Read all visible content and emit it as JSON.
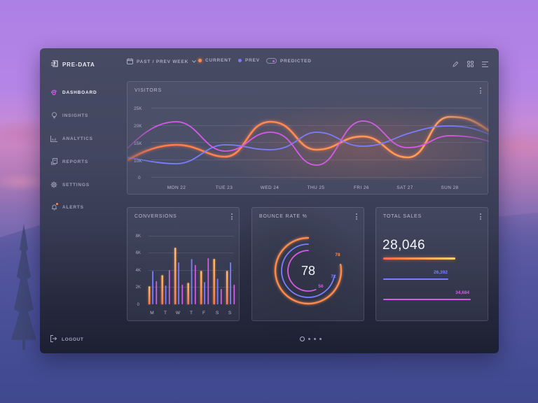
{
  "app": {
    "name": "PRE-DATA"
  },
  "header": {
    "range_label": "PAST / PREV WEEK",
    "legend": [
      {
        "label": "CURRENT",
        "color": "#ff8a4c"
      },
      {
        "label": "PREV",
        "color": "#7a7dff"
      }
    ],
    "toggle_label": "PREDICTED",
    "toggle_color": "#d55ae8",
    "icons": [
      "pencil-icon",
      "grid-icon",
      "menu-lines-icon"
    ]
  },
  "sidebar": {
    "items": [
      {
        "label": "DASHBOARD",
        "icon": "dashboard-icon",
        "active": true
      },
      {
        "label": "INSIGHTS",
        "icon": "lightbulb-icon"
      },
      {
        "label": "ANALYTICS",
        "icon": "bar-chart-icon"
      },
      {
        "label": "REPORTS",
        "icon": "reports-icon"
      },
      {
        "label": "SETTINGS",
        "icon": "gear-icon"
      },
      {
        "label": "ALERTS",
        "icon": "bell-icon",
        "badge_color": "#ff8a4c"
      }
    ],
    "logout_label": "LOGOUT"
  },
  "colors": {
    "current": "#ff8a4c",
    "current_highlight": "#ffc06a",
    "prev": "#7a7dff",
    "predicted": "#d55ae8"
  },
  "visitors": {
    "title": "VISITORS",
    "y_ticks": [
      "25K",
      "20K",
      "15K",
      "10K",
      "0"
    ],
    "x_labels": [
      "MON 22",
      "TUE 23",
      "WED 24",
      "THU 25",
      "FRI 26",
      "SAT 27",
      "SUN 28"
    ]
  },
  "conversions": {
    "title": "CONVERSIONS",
    "y_ticks": [
      "8K",
      "6K",
      "4K",
      "2K",
      "0"
    ],
    "x_labels": [
      "M",
      "T",
      "W",
      "T",
      "F",
      "S",
      "S"
    ]
  },
  "bounce_rate": {
    "title": "BOUNCE RATE %",
    "center_value": "78",
    "rings": [
      {
        "label": "78",
        "value": 78,
        "color": "#ff8a4c"
      },
      {
        "label": "72",
        "value": 72,
        "color": "#7a7dff"
      },
      {
        "label": "56",
        "value": 56,
        "color": "#d55ae8"
      }
    ]
  },
  "total_sales": {
    "title": "TOTAL SALES",
    "main_value": "28,046",
    "bars": [
      {
        "label": "",
        "value": 28046,
        "color": "#ff8a4c"
      },
      {
        "label": "26,392",
        "value": 26392,
        "color": "#7a7dff"
      },
      {
        "label": "34,684",
        "value": 34684,
        "color": "#d55ae8"
      }
    ]
  },
  "pager": {
    "pages": 4,
    "current": 1
  },
  "chart_data": [
    {
      "type": "line",
      "title": "VISITORS",
      "categories": [
        "MON 22",
        "TUE 23",
        "WED 24",
        "THU 25",
        "FRI 26",
        "SAT 27",
        "SUN 28"
      ],
      "ylim": [
        0,
        25000
      ],
      "y_ticks": [
        0,
        10000,
        15000,
        20000,
        25000
      ],
      "series": [
        {
          "name": "CURRENT",
          "values": [
            14000,
            10000,
            22000,
            13500,
            18000,
            10500,
            23000
          ]
        },
        {
          "name": "PREV",
          "values": [
            9500,
            15000,
            13500,
            18000,
            14500,
            16000,
            20500
          ]
        },
        {
          "name": "PREDICTED",
          "values": [
            21500,
            13000,
            18500,
            8500,
            22000,
            13500,
            18000
          ]
        }
      ]
    },
    {
      "type": "bar",
      "title": "CONVERSIONS",
      "categories": [
        "M",
        "T",
        "W",
        "T",
        "F",
        "S",
        "S"
      ],
      "ylim": [
        0,
        8000
      ],
      "y_ticks": [
        0,
        2000,
        4000,
        6000,
        8000
      ],
      "series": [
        {
          "name": "CURRENT",
          "values": [
            2100,
            3400,
            6600,
            2500,
            3900,
            5300,
            3900
          ]
        },
        {
          "name": "PREV",
          "values": [
            3900,
            2200,
            4900,
            5300,
            2600,
            3000,
            4900
          ]
        },
        {
          "name": "PREDICTED",
          "values": [
            2700,
            4000,
            2300,
            4600,
            5400,
            1800,
            2300
          ]
        }
      ]
    },
    {
      "type": "pie",
      "title": "BOUNCE RATE %",
      "categories": [
        "CURRENT",
        "PREV",
        "PREDICTED"
      ],
      "values": [
        78,
        72,
        56
      ]
    },
    {
      "type": "bar",
      "title": "TOTAL SALES",
      "categories": [
        "CURRENT",
        "PREV",
        "PREDICTED"
      ],
      "values": [
        28046,
        26392,
        34684
      ]
    }
  ]
}
